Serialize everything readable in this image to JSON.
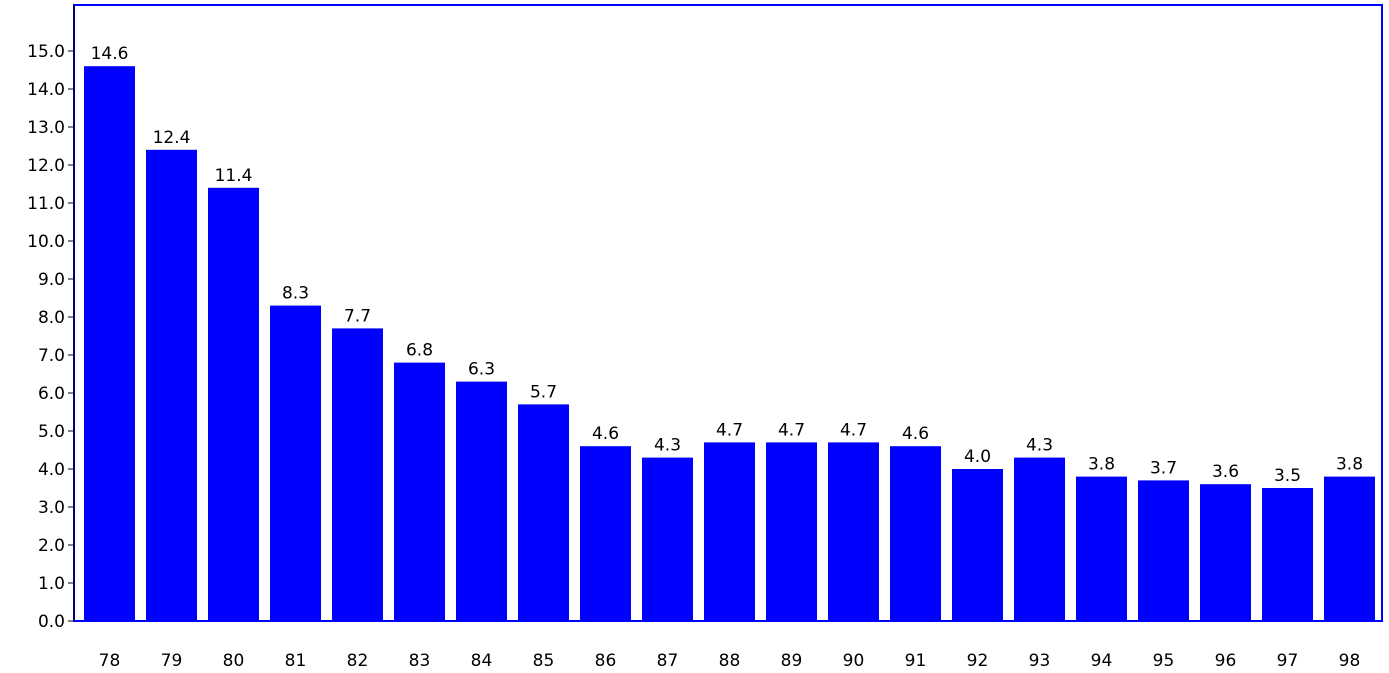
{
  "chart_data": {
    "type": "bar",
    "title": "",
    "xlabel": "",
    "ylabel": "",
    "ylim": [
      0,
      15.5
    ],
    "yticks": [
      "0.0",
      "1.0",
      "2.0",
      "3.0",
      "4.0",
      "5.0",
      "6.0",
      "7.0",
      "8.0",
      "9.0",
      "10.0",
      "11.0",
      "12.0",
      "13.0",
      "14.0",
      "15.0"
    ],
    "ytick_values": [
      0,
      1,
      2,
      3,
      4,
      5,
      6,
      7,
      8,
      9,
      10,
      11,
      12,
      13,
      14,
      15
    ],
    "categories": [
      "78",
      "79",
      "80",
      "81",
      "82",
      "83",
      "84",
      "85",
      "86",
      "87",
      "88",
      "89",
      "90",
      "91",
      "92",
      "93",
      "94",
      "95",
      "96",
      "97",
      "98"
    ],
    "values": [
      14.6,
      12.4,
      11.4,
      8.3,
      7.7,
      6.8,
      6.3,
      5.7,
      4.6,
      4.3,
      4.7,
      4.7,
      4.7,
      4.6,
      4.0,
      4.3,
      3.8,
      3.7,
      3.6,
      3.5,
      3.8
    ],
    "data_labels": [
      "14.6",
      "12.4",
      "11.4",
      "8.3",
      "7.7",
      "6.8",
      "6.3",
      "5.7",
      "4.6",
      "4.3",
      "4.7",
      "4.7",
      "4.7",
      "4.6",
      "4.0",
      "4.3",
      "3.8",
      "3.7",
      "3.6",
      "3.5",
      "3.8"
    ],
    "grid": false,
    "legend": "none",
    "colors": {
      "bar": "#0000ff",
      "frame": "#0000ff",
      "axis": "#000000"
    }
  }
}
